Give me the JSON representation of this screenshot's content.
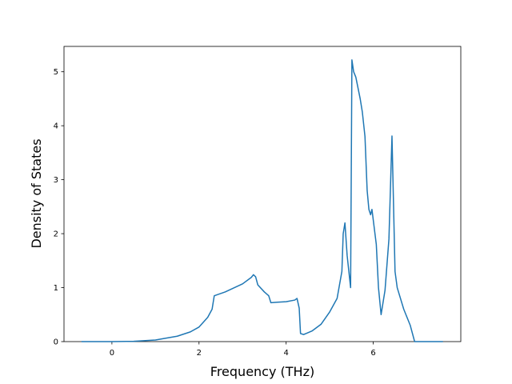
{
  "chart_data": {
    "type": "line",
    "x_label": "Frequency (THz)",
    "y_label": "Density of States",
    "x": [
      -0.7,
      0,
      0.5,
      1.0,
      1.5,
      1.8,
      2.0,
      2.2,
      2.3,
      2.35,
      2.6,
      3.0,
      3.2,
      3.25,
      3.3,
      3.35,
      3.5,
      3.6,
      3.65,
      3.8,
      4.0,
      4.2,
      4.25,
      4.3,
      4.33,
      4.4,
      4.6,
      4.8,
      5.0,
      5.17,
      5.28,
      5.31,
      5.35,
      5.4,
      5.48,
      5.51,
      5.55,
      5.6,
      5.7,
      5.75,
      5.81,
      5.86,
      5.9,
      5.94,
      5.97,
      6.07,
      6.12,
      6.18,
      6.27,
      6.36,
      6.43,
      6.5,
      6.55,
      6.7,
      6.85,
      6.95,
      7.6
    ],
    "series": [
      {
        "color": "#1f77b4",
        "values": [
          0,
          0,
          0.005,
          0.03,
          0.1,
          0.18,
          0.27,
          0.45,
          0.6,
          0.85,
          0.92,
          1.07,
          1.19,
          1.24,
          1.2,
          1.05,
          0.92,
          0.85,
          0.72,
          0.73,
          0.74,
          0.77,
          0.8,
          0.62,
          0.15,
          0.13,
          0.2,
          0.32,
          0.55,
          0.8,
          1.3,
          2.0,
          2.2,
          1.6,
          1.0,
          5.22,
          5.0,
          4.9,
          4.5,
          4.25,
          3.8,
          2.8,
          2.45,
          2.35,
          2.45,
          1.8,
          1.0,
          0.5,
          0.95,
          1.9,
          3.81,
          1.3,
          1.0,
          0.6,
          0.3,
          0.0,
          0
        ]
      }
    ],
    "xlim": [
      -1.1,
      8.01
    ],
    "ylim": [
      0,
      5.47
    ],
    "xticks": [
      0,
      2,
      4,
      6
    ],
    "yticks": [
      0,
      1,
      2,
      3,
      4,
      5
    ]
  }
}
